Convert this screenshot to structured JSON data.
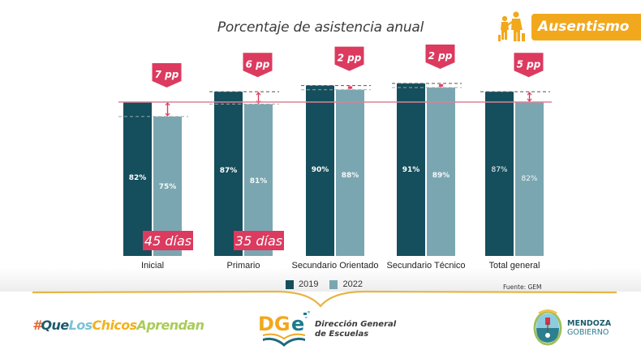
{
  "header": {
    "title": "Porcentaje de asistencia anual",
    "badge_label": "Ausentismo",
    "badge_icon": "children-walking-icon"
  },
  "colors": {
    "series_2019": "#154e5c",
    "series_2022": "#7aa6b1",
    "accent": "#dc3a5f",
    "badge": "#f2a81d",
    "reference_line": "#d98295"
  },
  "chart_data": {
    "type": "bar",
    "title": "Porcentaje de asistencia anual",
    "xlabel": "",
    "ylabel": "",
    "categories": [
      "Inicial",
      "Primario",
      "Secundario Orientado",
      "Secundario Técnico",
      "Total general"
    ],
    "series": [
      {
        "name": "2019",
        "values": [
          82,
          87,
          90,
          91,
          87
        ],
        "labels": [
          "82%",
          "87%",
          "90%",
          "91%",
          "87%"
        ]
      },
      {
        "name": "2022",
        "values": [
          75,
          81,
          88,
          89,
          82
        ],
        "labels": [
          "75%",
          "81%",
          "88%",
          "89%",
          "82%"
        ]
      }
    ],
    "differences": [
      "7 pp",
      "6 pp",
      "2 pp",
      "2 pp",
      "5 pp"
    ],
    "day_callouts": [
      {
        "category": "Inicial",
        "label": "45 días"
      },
      {
        "category": "Primario",
        "label": "35 días"
      }
    ],
    "reference_line": {
      "value": 82,
      "label": ""
    },
    "ylim": [
      0,
      100
    ],
    "grid": false,
    "legend": "bottom-center",
    "source": "Fuente: GEM"
  },
  "legend": {
    "items": [
      {
        "label": "2019"
      },
      {
        "label": "2022"
      }
    ]
  },
  "footer": {
    "source": "Fuente: GEM",
    "hashtag_parts": [
      {
        "text": "#",
        "color": "#e46a3a"
      },
      {
        "text": "Que",
        "color": "#1d5a6b"
      },
      {
        "text": "Los",
        "color": "#7cc3d6"
      },
      {
        "text": "Chicos",
        "color": "#f2b21b"
      },
      {
        "text": "Aprendan",
        "color": "#a9cc58"
      }
    ],
    "dge_line1": "Dirección General",
    "dge_line2": "de Escuelas",
    "dge_acronym": "DGe",
    "mendoza_line1": "MENDOZA",
    "mendoza_line2": "GOBIERNO"
  }
}
